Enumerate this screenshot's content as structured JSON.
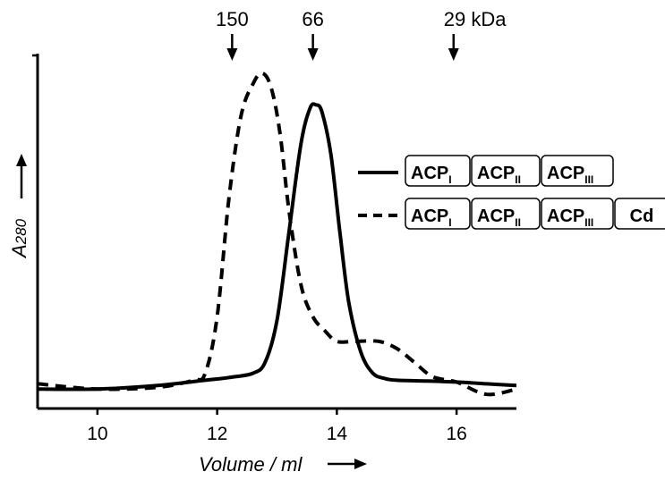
{
  "chart_data": {
    "type": "line",
    "xlabel": "Volume / ml",
    "ylabel": "A280",
    "ylabel_main": "A",
    "ylabel_sub": "280",
    "xlim": [
      9,
      17
    ],
    "ylim": [
      0,
      1
    ],
    "x_ticks": [
      10,
      12,
      14,
      16
    ],
    "x_tick_labels": [
      "10",
      "12",
      "14",
      "16"
    ],
    "grid": false,
    "legend_position": "right",
    "markers": [
      {
        "x": 12.25,
        "label": "150"
      },
      {
        "x": 13.6,
        "label": "66"
      },
      {
        "x": 15.95,
        "label": "29 kDa"
      }
    ],
    "series": [
      {
        "style": "solid",
        "legend_boxes": [
          {
            "main": "ACP",
            "sub": "I"
          },
          {
            "main": "ACP",
            "sub": "II"
          },
          {
            "main": "ACP",
            "sub": "III"
          }
        ],
        "x": [
          9.0,
          10.0,
          11.0,
          11.8,
          12.3,
          12.6,
          12.8,
          13.0,
          13.2,
          13.4,
          13.55,
          13.65,
          13.75,
          13.9,
          14.05,
          14.2,
          14.4,
          14.6,
          14.8,
          15.0,
          15.5,
          16.0,
          16.5,
          17.0
        ],
        "y": [
          0.055,
          0.055,
          0.065,
          0.08,
          0.09,
          0.1,
          0.13,
          0.25,
          0.5,
          0.75,
          0.85,
          0.86,
          0.84,
          0.72,
          0.5,
          0.3,
          0.16,
          0.1,
          0.085,
          0.08,
          0.078,
          0.075,
          0.07,
          0.065
        ]
      },
      {
        "style": "dashed",
        "legend_boxes": [
          {
            "main": "ACP",
            "sub": "I"
          },
          {
            "main": "ACP",
            "sub": "II"
          },
          {
            "main": "ACP",
            "sub": "III"
          },
          {
            "main": "Cd",
            "sub": ""
          }
        ],
        "x": [
          9.0,
          10.0,
          11.0,
          11.6,
          11.8,
          12.0,
          12.2,
          12.4,
          12.6,
          12.75,
          12.9,
          13.05,
          13.2,
          13.4,
          13.6,
          13.8,
          14.0,
          14.3,
          14.7,
          15.0,
          15.3,
          15.6,
          16.0,
          16.5,
          17.0
        ],
        "y": [
          0.07,
          0.055,
          0.06,
          0.08,
          0.1,
          0.26,
          0.6,
          0.83,
          0.92,
          0.95,
          0.91,
          0.78,
          0.56,
          0.35,
          0.26,
          0.22,
          0.19,
          0.19,
          0.19,
          0.17,
          0.13,
          0.09,
          0.075,
          0.04,
          0.055
        ]
      }
    ]
  }
}
